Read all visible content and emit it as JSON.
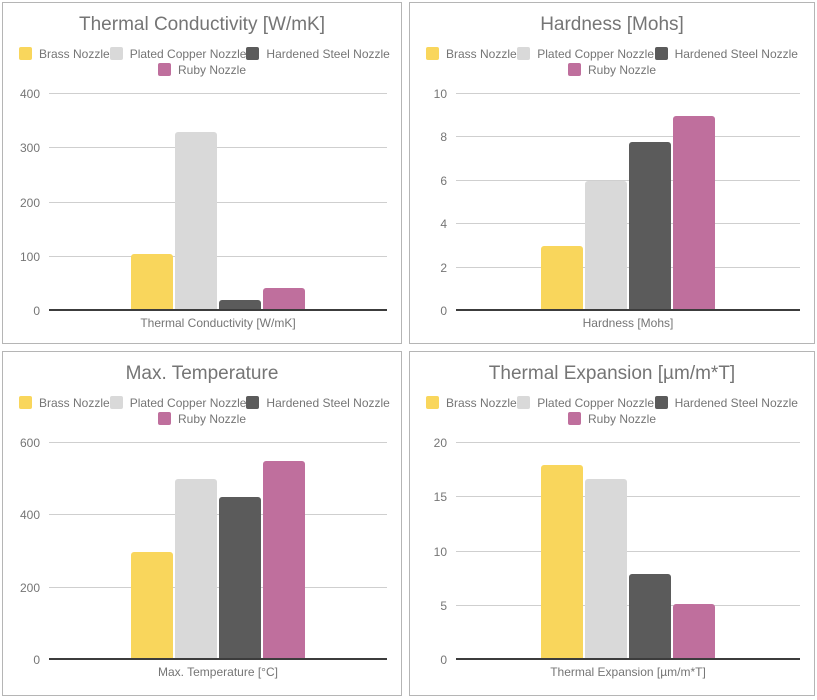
{
  "series": [
    {
      "name": "Brass Nozzle",
      "color": "#f9d65c"
    },
    {
      "name": "Plated Copper Nozzle",
      "color": "#d9d9d9"
    },
    {
      "name": "Hardened Steel Nozzle",
      "color": "#5b5b5b"
    },
    {
      "name": "Ruby Nozzle",
      "color": "#bf6f9d"
    }
  ],
  "chart_data": [
    {
      "type": "bar",
      "title": "Thermal Conductivity [W/mK]",
      "xlabel": "Thermal Conductivity [W/mK]",
      "ylabel": "",
      "categories": [
        "Thermal Conductivity [W/mK]"
      ],
      "series": [
        {
          "name": "Brass Nozzle",
          "values": [
            105
          ]
        },
        {
          "name": "Plated Copper Nozzle",
          "values": [
            330
          ]
        },
        {
          "name": "Hardened Steel Nozzle",
          "values": [
            20
          ]
        },
        {
          "name": "Ruby Nozzle",
          "values": [
            42
          ]
        }
      ],
      "ylim": [
        0,
        400
      ],
      "yticks": [
        0,
        100,
        200,
        300,
        400
      ],
      "grid": true,
      "legend_position": "top"
    },
    {
      "type": "bar",
      "title": "Hardness [Mohs]",
      "xlabel": "Hardness [Mohs]",
      "ylabel": "",
      "categories": [
        "Hardness [Mohs]"
      ],
      "series": [
        {
          "name": "Brass Nozzle",
          "values": [
            3
          ]
        },
        {
          "name": "Plated Copper Nozzle",
          "values": [
            6
          ]
        },
        {
          "name": "Hardened Steel Nozzle",
          "values": [
            7.8
          ]
        },
        {
          "name": "Ruby Nozzle",
          "values": [
            9
          ]
        }
      ],
      "ylim": [
        0,
        10
      ],
      "yticks": [
        0,
        2,
        4,
        6,
        8,
        10
      ],
      "grid": true,
      "legend_position": "top"
    },
    {
      "type": "bar",
      "title": "Max. Temperature",
      "xlabel": "Max. Temperature [°C]",
      "ylabel": "",
      "categories": [
        "Max. Temperature [°C]"
      ],
      "series": [
        {
          "name": "Brass Nozzle",
          "values": [
            300
          ]
        },
        {
          "name": "Plated Copper Nozzle",
          "values": [
            500
          ]
        },
        {
          "name": "Hardened Steel Nozzle",
          "values": [
            450
          ]
        },
        {
          "name": "Ruby Nozzle",
          "values": [
            550
          ]
        }
      ],
      "ylim": [
        0,
        600
      ],
      "yticks": [
        0,
        200,
        400,
        600
      ],
      "grid": true,
      "legend_position": "top"
    },
    {
      "type": "bar",
      "title": "Thermal Expansion [µm/m*T]",
      "xlabel": "Thermal Expansion [µm/m*T]",
      "ylabel": "",
      "categories": [
        "Thermal Expansion [µm/m*T]"
      ],
      "series": [
        {
          "name": "Brass Nozzle",
          "values": [
            18
          ]
        },
        {
          "name": "Plated Copper Nozzle",
          "values": [
            16.7
          ]
        },
        {
          "name": "Hardened Steel Nozzle",
          "values": [
            7.9
          ]
        },
        {
          "name": "Ruby Nozzle",
          "values": [
            5.2
          ]
        }
      ],
      "ylim": [
        0,
        20
      ],
      "yticks": [
        0,
        5,
        10,
        15,
        20
      ],
      "grid": true,
      "legend_position": "top"
    }
  ],
  "colors": {
    "title_text": "#757575",
    "legend_text": "#757575",
    "tick_text": "#757575",
    "gridline": "#cfcfcf",
    "baseline": "#3c3c3c",
    "card_border": "#b5b5b5",
    "background": "#ffffff"
  }
}
